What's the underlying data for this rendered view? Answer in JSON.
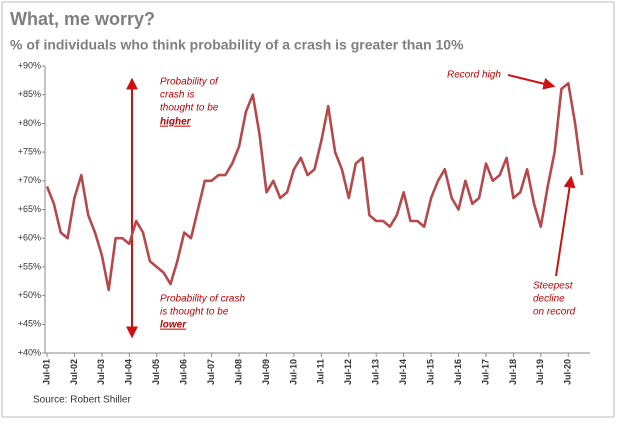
{
  "chart_data": {
    "type": "line",
    "title": "What, me worry?",
    "subtitle": "% of individuals who think probability of a crash is greater than 10%",
    "source": "Source: Robert Shiller",
    "color": "#b5494b",
    "categories": [
      "Jul-01",
      null,
      null,
      null,
      "Jul-02",
      null,
      null,
      null,
      "Jul-03",
      null,
      null,
      null,
      "Jul-04",
      null,
      null,
      null,
      "Jul-05",
      null,
      null,
      null,
      "Jul-06",
      null,
      null,
      null,
      "Jul-07",
      null,
      null,
      null,
      "Jul-08",
      null,
      null,
      null,
      "Jul-09",
      null,
      null,
      null,
      "Jul-10",
      null,
      null,
      null,
      "Jul-11",
      null,
      null,
      null,
      "Jul-12",
      null,
      null,
      null,
      "Jul-13",
      null,
      null,
      null,
      "Jul-14",
      null,
      null,
      null,
      "Jul-15",
      null,
      null,
      null,
      "Jul-16",
      null,
      null,
      null,
      "Jul-17",
      null,
      null,
      null,
      "Jul-18",
      null,
      null,
      null,
      "Jul-19",
      null,
      null,
      null,
      "Jul-20",
      null,
      null
    ],
    "values": [
      69,
      66,
      61,
      60,
      67,
      71,
      64,
      61,
      57,
      51,
      60,
      60,
      59,
      63,
      61,
      56,
      55,
      54,
      52,
      56,
      61,
      60,
      65,
      70,
      70,
      71,
      71,
      73,
      76,
      82,
      85,
      78,
      68,
      70,
      67,
      68,
      72,
      74,
      71,
      72,
      77,
      83,
      75,
      72,
      67,
      73,
      74,
      64,
      63,
      63,
      62,
      64,
      68,
      63,
      63,
      62,
      67,
      70,
      72,
      67,
      65,
      70,
      66,
      67,
      73,
      70,
      71,
      74,
      67,
      68,
      72,
      66,
      62,
      69,
      75,
      86,
      87,
      80,
      71
    ],
    "ylim": [
      40,
      90
    ],
    "yticks": [
      {
        "value": 40,
        "label": "+40%"
      },
      {
        "value": 45,
        "label": "+45%"
      },
      {
        "value": 50,
        "label": "+50%"
      },
      {
        "value": 55,
        "label": "+55%"
      },
      {
        "value": 60,
        "label": "+60%"
      },
      {
        "value": 65,
        "label": "+65%"
      },
      {
        "value": 70,
        "label": "+70%"
      },
      {
        "value": 75,
        "label": "+75%"
      },
      {
        "value": 80,
        "label": "+80%"
      },
      {
        "value": 85,
        "label": "+85%"
      },
      {
        "value": 90,
        "label": "+90%"
      }
    ],
    "grid": false,
    "annotations": [
      {
        "lines": [
          "Probability of",
          "crash is",
          "thought to be"
        ],
        "emphasis": "higher"
      },
      {
        "lines": [
          "Probability of crash",
          "is thought to be"
        ],
        "emphasis": "lower"
      },
      {
        "lines": [
          "Record high"
        ]
      },
      {
        "lines": [
          "Steepest",
          "decline",
          "on record"
        ]
      }
    ]
  }
}
